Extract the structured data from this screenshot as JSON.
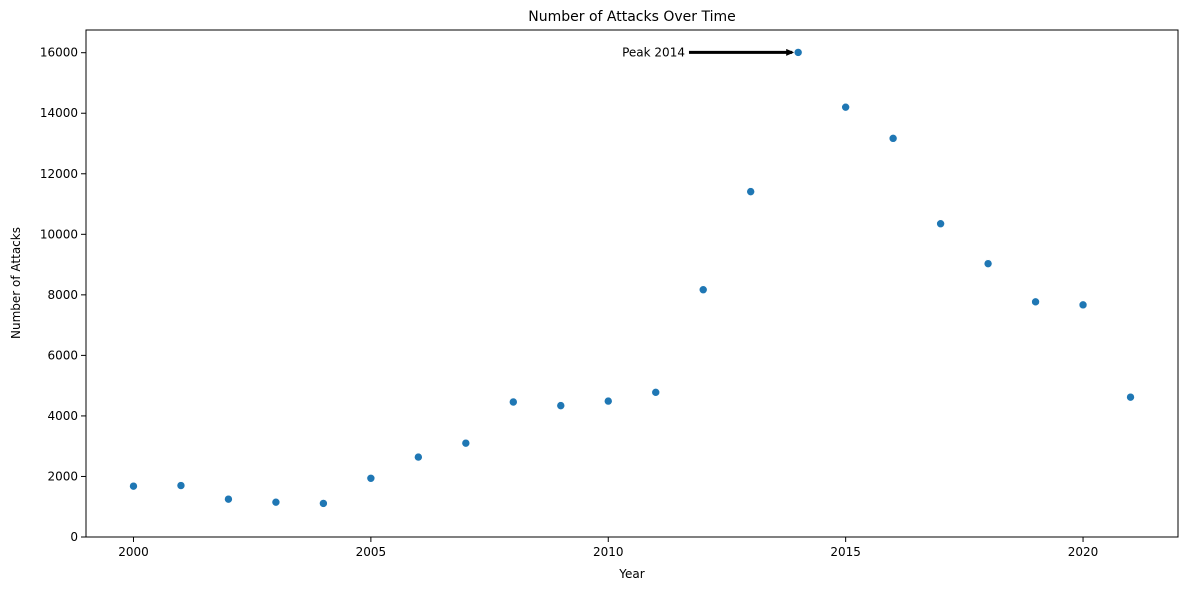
{
  "chart_data": {
    "type": "scatter",
    "title": "Number of Attacks Over Time",
    "xlabel": "Year",
    "ylabel": "Number of Attacks",
    "xlim": [
      1999,
      2022
    ],
    "ylim": [
      0,
      16750
    ],
    "xticks": [
      2000,
      2005,
      2010,
      2015,
      2020
    ],
    "yticks": [
      0,
      2000,
      4000,
      6000,
      8000,
      10000,
      12000,
      14000,
      16000
    ],
    "grid": false,
    "series": [
      {
        "color": "#1f77b4",
        "points": [
          {
            "x": 2000,
            "y": 1680
          },
          {
            "x": 2001,
            "y": 1700
          },
          {
            "x": 2002,
            "y": 1250
          },
          {
            "x": 2003,
            "y": 1150
          },
          {
            "x": 2004,
            "y": 1110
          },
          {
            "x": 2005,
            "y": 1940
          },
          {
            "x": 2006,
            "y": 2640
          },
          {
            "x": 2007,
            "y": 3100
          },
          {
            "x": 2008,
            "y": 4460
          },
          {
            "x": 2009,
            "y": 4340
          },
          {
            "x": 2010,
            "y": 4490
          },
          {
            "x": 2011,
            "y": 4780
          },
          {
            "x": 2012,
            "y": 8170
          },
          {
            "x": 2013,
            "y": 11410
          },
          {
            "x": 2014,
            "y": 16010
          },
          {
            "x": 2015,
            "y": 14200
          },
          {
            "x": 2016,
            "y": 13170
          },
          {
            "x": 2017,
            "y": 10350
          },
          {
            "x": 2018,
            "y": 9030
          },
          {
            "x": 2019,
            "y": 7770
          },
          {
            "x": 2020,
            "y": 7670
          },
          {
            "x": 2021,
            "y": 4620
          }
        ]
      }
    ],
    "annotations": [
      {
        "text": "Peak 2014",
        "point": {
          "x": 2014,
          "y": 16010
        },
        "text_at": {
          "x": 2011.7,
          "y": 16010
        }
      }
    ]
  }
}
